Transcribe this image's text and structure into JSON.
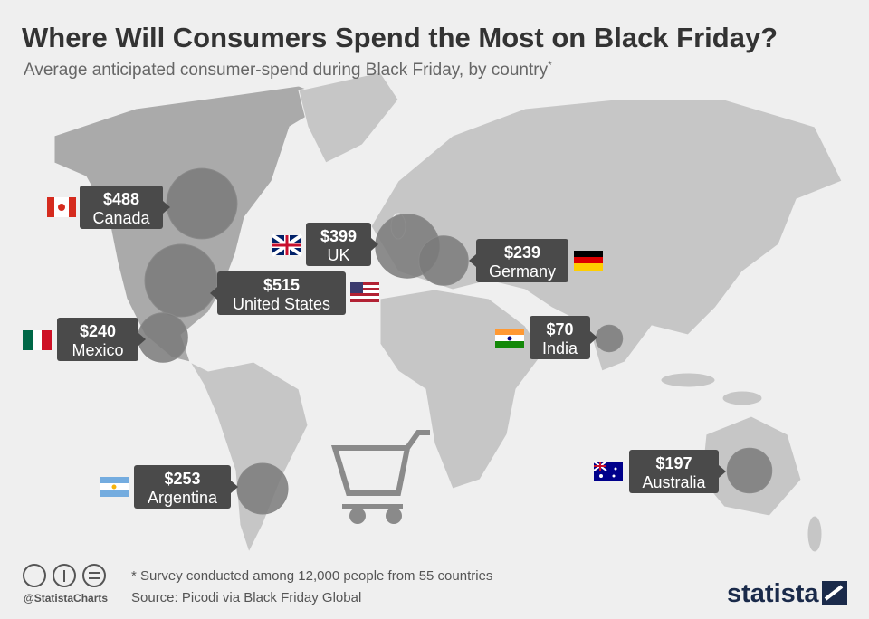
{
  "header": {
    "title": "Where Will Consumers Spend the Most on Black Friday?",
    "subtitle": "Average anticipated consumer-spend during Black Friday, by country",
    "subtitle_mark": "*"
  },
  "countries": [
    {
      "name": "Canada",
      "value": 488,
      "value_label": "$488"
    },
    {
      "name": "United States",
      "value": 515,
      "value_label": "$515"
    },
    {
      "name": "Mexico",
      "value": 240,
      "value_label": "$240"
    },
    {
      "name": "UK",
      "value": 399,
      "value_label": "$399"
    },
    {
      "name": "Germany",
      "value": 239,
      "value_label": "$239"
    },
    {
      "name": "India",
      "value": 70,
      "value_label": "$70"
    },
    {
      "name": "Argentina",
      "value": 253,
      "value_label": "$253"
    },
    {
      "name": "Australia",
      "value": 197,
      "value_label": "$197"
    }
  ],
  "footer": {
    "note": "* Survey conducted among 12,000 people from 55 countries",
    "source": "Source: Picodi via Black Friday Global",
    "handle": "@StatistaCharts",
    "brand": "statista"
  }
}
